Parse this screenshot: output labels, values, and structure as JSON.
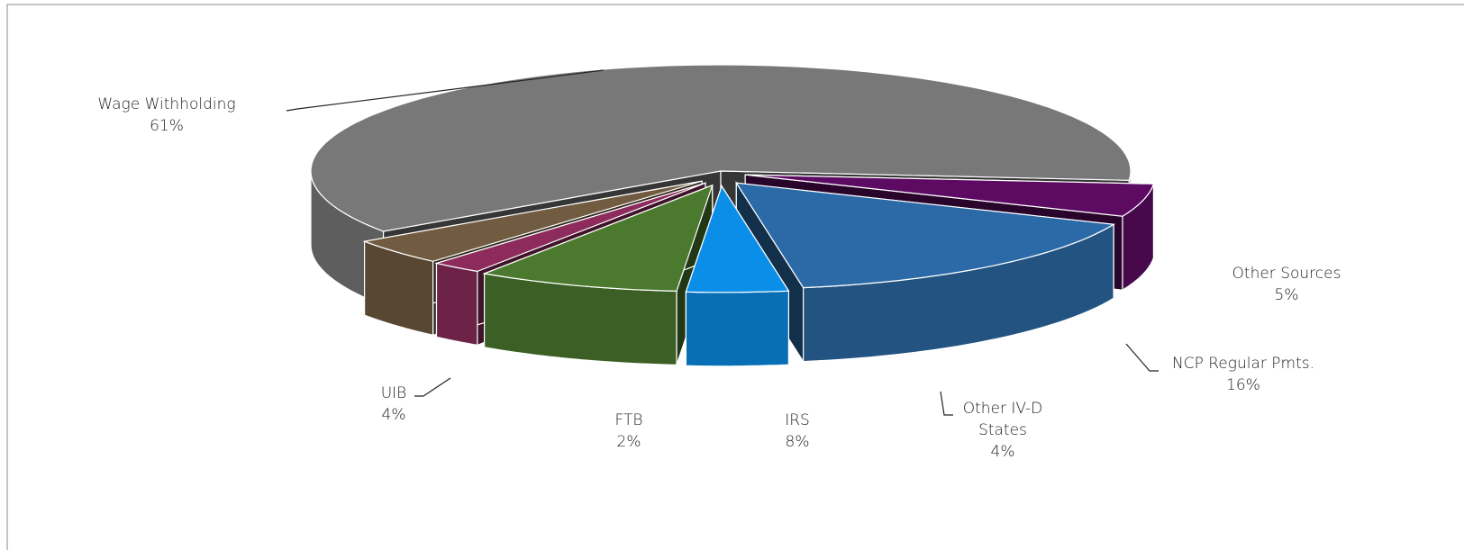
{
  "chart_data": {
    "type": "pie",
    "categories": [
      "Wage Withholding",
      "Other Sources",
      "NCP Regular Pmts.",
      "Other IV-D States",
      "IRS",
      "FTB",
      "UIB"
    ],
    "values": [
      61,
      5,
      16,
      4,
      8,
      2,
      4
    ],
    "value_labels": [
      "61%",
      "5%",
      "16%",
      "4%",
      "8%",
      "2%",
      "4%"
    ],
    "colors": [
      "#787878",
      "#5c0a62",
      "#2b6aa6",
      "#0a8ee8",
      "#4b7a2e",
      "#8c2b5c",
      "#715c41"
    ]
  }
}
